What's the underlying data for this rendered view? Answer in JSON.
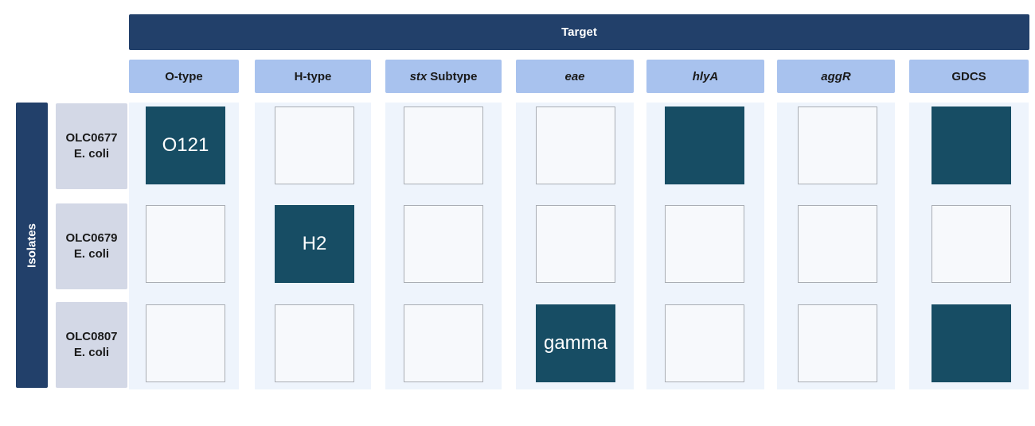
{
  "target_label": "Target",
  "isolate_label": "Isolates",
  "columns": [
    {
      "label": "O-type"
    },
    {
      "label": "H-type"
    },
    {
      "label_italic": "stx",
      "label": "Subtype"
    },
    {
      "label": "eae"
    },
    {
      "label": "hlyA"
    },
    {
      "label": "aggR"
    },
    {
      "label": "GDCS"
    }
  ],
  "rows": [
    {
      "id": "OLC0677",
      "organism": "E. coli",
      "cells": [
        {
          "filled": true,
          "text": "O121"
        },
        {
          "filled": false,
          "text": ""
        },
        {
          "filled": false,
          "text": ""
        },
        {
          "filled": false,
          "text": ""
        },
        {
          "filled": true,
          "text": ""
        },
        {
          "filled": false,
          "text": ""
        },
        {
          "filled": true,
          "text": ""
        }
      ]
    },
    {
      "id": "OLC0679",
      "organism": "E. coli",
      "cells": [
        {
          "filled": false,
          "text": ""
        },
        {
          "filled": true,
          "text": "H2"
        },
        {
          "filled": false,
          "text": ""
        },
        {
          "filled": false,
          "text": ""
        },
        {
          "filled": false,
          "text": ""
        },
        {
          "filled": false,
          "text": ""
        },
        {
          "filled": false,
          "text": ""
        }
      ]
    },
    {
      "id": "OLC0807",
      "organism": "E. coli",
      "cells": [
        {
          "filled": false,
          "text": ""
        },
        {
          "filled": false,
          "text": ""
        },
        {
          "filled": false,
          "text": ""
        },
        {
          "filled": true,
          "text": "gamma"
        },
        {
          "filled": false,
          "text": ""
        },
        {
          "filled": false,
          "text": ""
        },
        {
          "filled": true,
          "text": ""
        }
      ]
    }
  ],
  "colors": {
    "header_dark": "#22406a",
    "column_header": "#a8c2ee",
    "row_header": "#d3d8e6",
    "filled_cell": "#174d64",
    "empty_cell": "#f7f9fc"
  }
}
